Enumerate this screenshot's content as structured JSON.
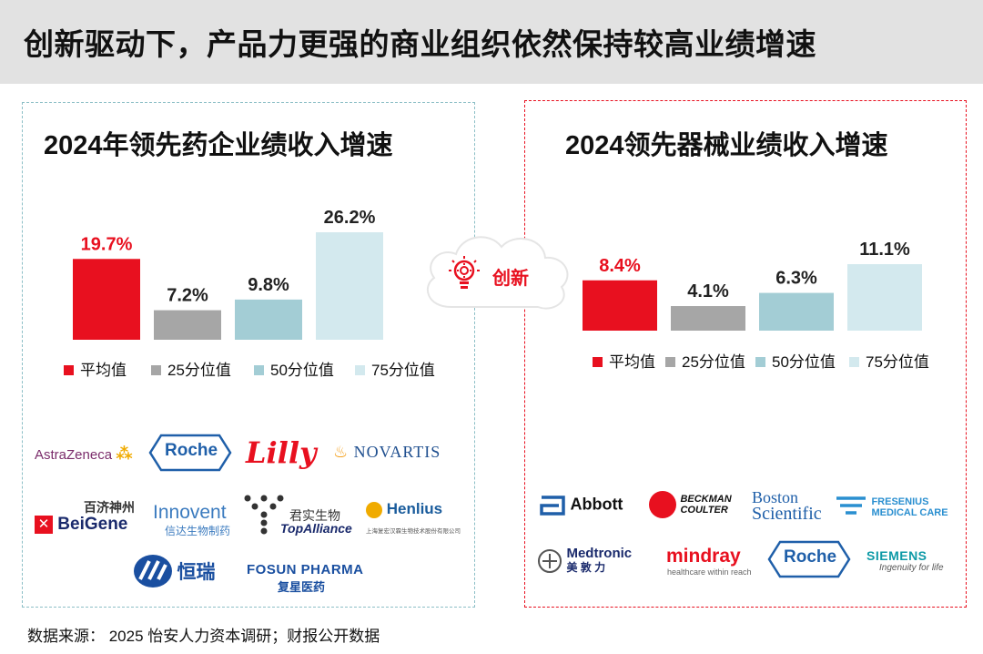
{
  "title": "创新驱动下，产品力更强的商业组织依然保持较高业绩增速",
  "left_panel": {
    "title": "2024年领先药企业绩收入增速",
    "logos": {
      "astrazeneca": "AstraZeneca",
      "roche": "Roche",
      "lilly": "Lilly",
      "novartis": "NOVARTIS",
      "beigene_cn": "百济神州",
      "beigene": "BeiGene",
      "innovent": "Innovent",
      "innovent_cn": "信达生物制药",
      "topalliance_cn": "君实生物",
      "topalliance": "TopAlliance",
      "henlius": "Henlius",
      "henlius_cn": "上海复宏汉霖生物技术股份有限公司",
      "hengrui_cn": "恒瑞",
      "fosun": "FOSUN PHARMA",
      "fosun_cn": "复星医药"
    }
  },
  "right_panel": {
    "title": "2024领先器械业绩收入增速",
    "logos": {
      "abbott": "Abbott",
      "beckman_1": "BECKMAN",
      "beckman_2": "COULTER",
      "boston_1": "Boston",
      "boston_2": "Scientific",
      "fresenius_1": "FRESENIUS",
      "fresenius_2": "MEDICAL CARE",
      "medtronic": "Medtronic",
      "medtronic_cn": "美 敦 力",
      "mindray": "mindray",
      "mindray_sub": "healthcare within reach",
      "roche": "Roche",
      "siemens": "SIEMENS",
      "siemens_sub": "Ingenuity for life"
    }
  },
  "innovation_label": "创新",
  "source": "数据来源：  2025 怡安人力资本调研；财报公开数据",
  "colors": {
    "red": "#e8101f",
    "gray": "#a6a6a6",
    "teal": "#a3cdd5",
    "light": "#d3e9ee"
  },
  "chart_data": [
    {
      "type": "bar",
      "title": "2024年领先药企业绩收入增速",
      "categories": [
        "平均值",
        "25分位值",
        "50分位值",
        "75分位值"
      ],
      "values": [
        19.7,
        7.2,
        9.8,
        26.2
      ],
      "labels": [
        "19.7%",
        "7.2%",
        "9.8%",
        "26.2%"
      ],
      "colors": [
        "#e8101f",
        "#a6a6a6",
        "#a3cdd5",
        "#d3e9ee"
      ],
      "ylim": [
        0,
        26.2
      ],
      "legend": "bottom"
    },
    {
      "type": "bar",
      "title": "2024领先器械业绩收入增速",
      "categories": [
        "平均值",
        "25分位值",
        "50分位值",
        "75分位值"
      ],
      "values": [
        8.4,
        4.1,
        6.3,
        11.1
      ],
      "labels": [
        "8.4%",
        "4.1%",
        "6.3%",
        "11.1%"
      ],
      "colors": [
        "#e8101f",
        "#a6a6a6",
        "#a3cdd5",
        "#d3e9ee"
      ],
      "ylim": [
        0,
        11.1
      ],
      "legend": "bottom"
    }
  ]
}
